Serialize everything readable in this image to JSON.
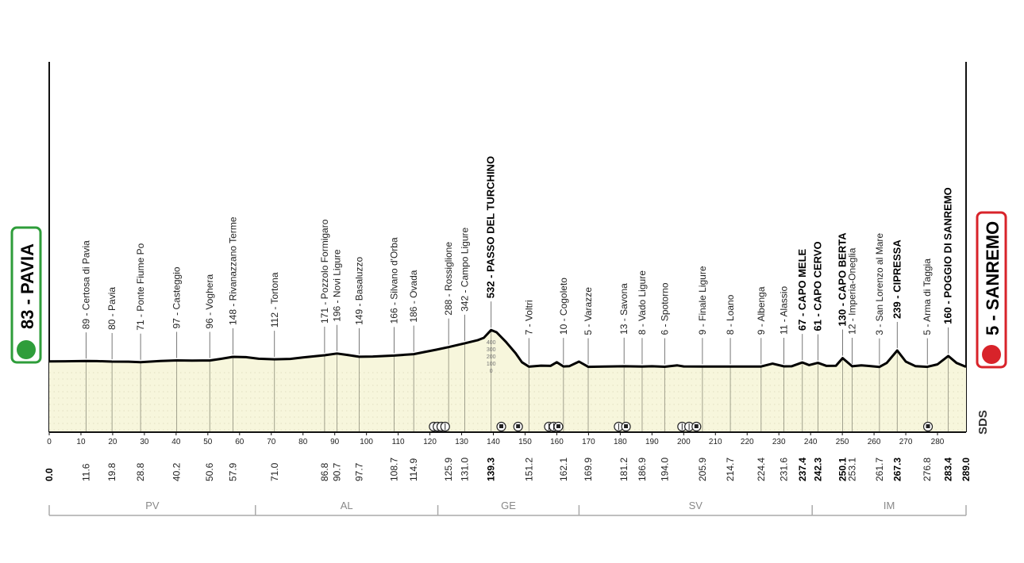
{
  "start": {
    "label": "83 - PAVIA",
    "color": "#2e9d3a"
  },
  "finish": {
    "label": "5 - SANREMO",
    "color": "#d8232a"
  },
  "sds_label": "SDS",
  "chart_data": {
    "type": "area",
    "xlim": [
      0,
      289
    ],
    "ticks": [
      0,
      10,
      20,
      30,
      40,
      50,
      60,
      70,
      80,
      90,
      100,
      110,
      120,
      130,
      140,
      150,
      160,
      170,
      180,
      190,
      200,
      210,
      220,
      230,
      240,
      250,
      260,
      270,
      280
    ],
    "altitude_scale": [
      "400",
      "300",
      "200",
      "100",
      "0"
    ],
    "profile": [
      [
        0,
        83
      ],
      [
        5,
        84
      ],
      [
        11.6,
        89
      ],
      [
        15,
        86
      ],
      [
        19.8,
        80
      ],
      [
        25,
        78
      ],
      [
        28.8,
        71
      ],
      [
        35,
        88
      ],
      [
        40.2,
        97
      ],
      [
        45,
        94
      ],
      [
        50.6,
        96
      ],
      [
        54,
        118
      ],
      [
        57.9,
        148
      ],
      [
        62,
        143
      ],
      [
        66,
        120
      ],
      [
        71,
        112
      ],
      [
        76,
        118
      ],
      [
        80,
        140
      ],
      [
        86.8,
        171
      ],
      [
        90.7,
        196
      ],
      [
        94,
        175
      ],
      [
        97.7,
        149
      ],
      [
        102,
        152
      ],
      [
        108.7,
        166
      ],
      [
        114.9,
        186
      ],
      [
        118,
        215
      ],
      [
        122,
        250
      ],
      [
        125.9,
        288
      ],
      [
        131,
        342
      ],
      [
        135,
        385
      ],
      [
        137,
        420
      ],
      [
        139.3,
        532
      ],
      [
        141,
        500
      ],
      [
        144,
        360
      ],
      [
        147,
        200
      ],
      [
        149,
        70
      ],
      [
        151.2,
        7
      ],
      [
        155,
        22
      ],
      [
        158,
        18
      ],
      [
        160,
        70
      ],
      [
        162.1,
        10
      ],
      [
        164,
        15
      ],
      [
        167,
        80
      ],
      [
        169.9,
        5
      ],
      [
        175,
        8
      ],
      [
        181.2,
        13
      ],
      [
        185,
        10
      ],
      [
        186.9,
        8
      ],
      [
        190,
        12
      ],
      [
        194,
        6
      ],
      [
        198,
        25
      ],
      [
        200,
        10
      ],
      [
        205.9,
        9
      ],
      [
        210,
        8
      ],
      [
        214.7,
        8
      ],
      [
        220,
        8
      ],
      [
        224.4,
        9
      ],
      [
        228,
        50
      ],
      [
        231.6,
        11
      ],
      [
        234,
        12
      ],
      [
        237.4,
        67
      ],
      [
        239.5,
        30
      ],
      [
        242.3,
        61
      ],
      [
        245,
        18
      ],
      [
        248,
        20
      ],
      [
        250.1,
        130
      ],
      [
        253.1,
        12
      ],
      [
        256,
        25
      ],
      [
        258,
        18
      ],
      [
        261.7,
        3
      ],
      [
        264,
        60
      ],
      [
        267.3,
        239
      ],
      [
        270,
        80
      ],
      [
        273,
        15
      ],
      [
        276.8,
        5
      ],
      [
        280,
        40
      ],
      [
        283.4,
        160
      ],
      [
        286,
        60
      ],
      [
        289,
        5
      ]
    ],
    "distance_labels": [
      {
        "km": "0.0",
        "bold": true
      },
      {
        "km": "11.6"
      },
      {
        "km": "19.8"
      },
      {
        "km": "28.8"
      },
      {
        "km": "40.2"
      },
      {
        "km": "50.6"
      },
      {
        "km": "57.9"
      },
      {
        "km": "71.0"
      },
      {
        "km": "86.8"
      },
      {
        "km": "90.7"
      },
      {
        "km": "97.7"
      },
      {
        "km": "108.7"
      },
      {
        "km": "114.9"
      },
      {
        "km": "125.9"
      },
      {
        "km": "131.0"
      },
      {
        "km": "139.3",
        "bold": true
      },
      {
        "km": "151.2"
      },
      {
        "km": "162.1"
      },
      {
        "km": "169.9"
      },
      {
        "km": "181.2"
      },
      {
        "km": "186.9"
      },
      {
        "km": "194.0"
      },
      {
        "km": "205.9"
      },
      {
        "km": "214.7"
      },
      {
        "km": "224.4"
      },
      {
        "km": "231.6"
      },
      {
        "km": "237.4",
        "bold": true
      },
      {
        "km": "242.3",
        "bold": true
      },
      {
        "km": "250.1",
        "bold": true
      },
      {
        "km": "253.1"
      },
      {
        "km": "261.7"
      },
      {
        "km": "267.3",
        "bold": true
      },
      {
        "km": "276.8"
      },
      {
        "km": "283.4",
        "bold": true
      },
      {
        "km": "289.0",
        "bold": true
      }
    ],
    "places": [
      {
        "km": 11.6,
        "label": "89 - Certosa di Pavia"
      },
      {
        "km": 19.8,
        "label": "80 - Pavia"
      },
      {
        "km": 28.8,
        "label": "71 - Ponte Fiume Po"
      },
      {
        "km": 40.2,
        "label": "97 - Casteggio"
      },
      {
        "km": 50.6,
        "label": "96 - Voghera"
      },
      {
        "km": 57.9,
        "label": "148 - Rivanazzano Terme"
      },
      {
        "km": 71.0,
        "label": "112 - Tortona"
      },
      {
        "km": 86.8,
        "label": "171 - Pozzolo Formigaro"
      },
      {
        "km": 90.7,
        "label": "196 - Novi Ligure"
      },
      {
        "km": 97.7,
        "label": "149 - Basaluzzo"
      },
      {
        "km": 108.7,
        "label": "166 - Silvano d'Orba"
      },
      {
        "km": 114.9,
        "label": "186 - Ovada"
      },
      {
        "km": 125.9,
        "label": "288 - Rossiglione"
      },
      {
        "km": 131.0,
        "label": "342 - Campo Ligure"
      },
      {
        "km": 139.3,
        "label": "532 - PASSO DEL TURCHINO",
        "bold": true
      },
      {
        "km": 151.2,
        "label": "7 - Voltri"
      },
      {
        "km": 162.1,
        "label": "10 - Cogoleto"
      },
      {
        "km": 169.9,
        "label": "5 - Varazze"
      },
      {
        "km": 181.2,
        "label": "13 - Savona"
      },
      {
        "km": 186.9,
        "label": "8 - Vado Ligure"
      },
      {
        "km": 194.0,
        "label": "6 - Spotorno"
      },
      {
        "km": 205.9,
        "label": "9 - Finale Ligure"
      },
      {
        "km": 214.7,
        "label": "8 - Loano"
      },
      {
        "km": 224.4,
        "label": "9 - Albenga"
      },
      {
        "km": 231.6,
        "label": "11 - Alassio"
      },
      {
        "km": 237.4,
        "label": "67 - CAPO MELE",
        "bold": true
      },
      {
        "km": 242.3,
        "label": "61 - CAPO CERVO",
        "bold": true
      },
      {
        "km": 250.1,
        "label": "130 - CAPO BERTA",
        "bold": true
      },
      {
        "km": 253.1,
        "label": "12 - Imperia-Oneglia"
      },
      {
        "km": 261.7,
        "label": "3 - San Lorenzo al Mare"
      },
      {
        "km": 267.3,
        "label": "239 - CIPRESSA",
        "bold": true
      },
      {
        "km": 276.8,
        "label": "5 - Arma di Taggia"
      },
      {
        "km": 283.4,
        "label": "160 - POGGIO DI SANREMO",
        "bold": true
      }
    ],
    "markers": [
      {
        "km": 121.2,
        "icon": "tunnel-icon"
      },
      {
        "km": 122.4,
        "icon": "tunnel-icon"
      },
      {
        "km": 123.6,
        "icon": "tunnel-icon"
      },
      {
        "km": 124.8,
        "icon": "tunnel-icon"
      },
      {
        "km": 142.5,
        "icon": "feed-zone-icon"
      },
      {
        "km": 147.8,
        "icon": "feed-zone-icon"
      },
      {
        "km": 157.5,
        "icon": "tunnel-icon"
      },
      {
        "km": 159.0,
        "icon": "tunnel-icon"
      },
      {
        "km": 160.5,
        "icon": "feed-zone-icon"
      },
      {
        "km": 179.5,
        "icon": "tunnel-icon"
      },
      {
        "km": 181.8,
        "icon": "feed-zone-icon"
      },
      {
        "km": 199.5,
        "icon": "tunnel-icon"
      },
      {
        "km": 201.7,
        "icon": "tunnel-icon"
      },
      {
        "km": 204.0,
        "icon": "feed-zone-icon"
      },
      {
        "km": 277.0,
        "icon": "feed-zone-icon"
      }
    ],
    "provinces": [
      {
        "label": "PV",
        "from": 0,
        "to": 65
      },
      {
        "label": "AL",
        "from": 65,
        "to": 122.5
      },
      {
        "label": "GE",
        "from": 122.5,
        "to": 167
      },
      {
        "label": "SV",
        "from": 167,
        "to": 240.5
      },
      {
        "label": "IM",
        "from": 240.5,
        "to": 289
      }
    ]
  }
}
